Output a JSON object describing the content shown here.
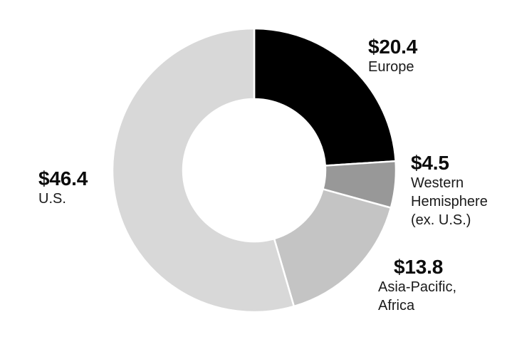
{
  "chart_data": {
    "type": "pie",
    "variant": "donut",
    "start_angle_deg": 0,
    "direction": "clockwise",
    "total": 85.1,
    "legend_position": "callout-labels",
    "segments": [
      {
        "id": "europe",
        "label": "Europe",
        "value": 20.4,
        "display": "$20.4",
        "color": "#000000"
      },
      {
        "id": "western-hemisphere",
        "label": "Western Hemisphere (ex. U.S.)",
        "value": 4.5,
        "display": "$4.5",
        "color": "#989898"
      },
      {
        "id": "asia-pacific-africa",
        "label": "Asia-Pacific, Africa",
        "value": 13.8,
        "display": "$13.8",
        "color": "#c4c4c4"
      },
      {
        "id": "us",
        "label": "U.S.",
        "value": 46.4,
        "display": "$46.4",
        "color": "#d8d8d8"
      }
    ]
  },
  "labels": {
    "europe": {
      "value": "$20.4",
      "line1": "Europe"
    },
    "western": {
      "value": "$4.5",
      "line1": "Western",
      "line2": "Hemisphere",
      "line3": "(ex. U.S.)"
    },
    "asia": {
      "value": "$13.8",
      "line1": "Asia-Pacific,",
      "line2": "Africa"
    },
    "us": {
      "value": "$46.4",
      "line1": "U.S."
    }
  },
  "colors": {
    "background": "#ffffff",
    "divider": "#ffffff",
    "value_text": "#0c0c0c",
    "label_text": "#1a1a1a"
  }
}
